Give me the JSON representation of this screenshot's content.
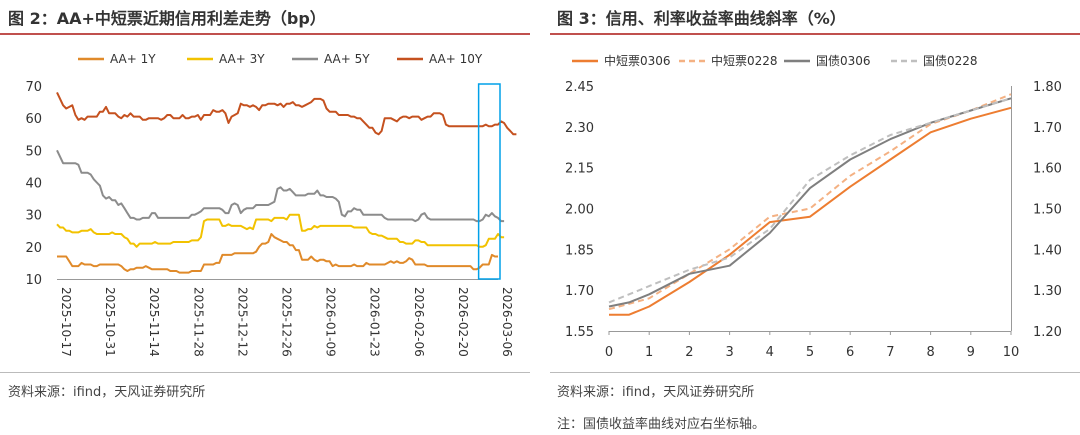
{
  "left_panel": {
    "title": "图 2：AA+中短票近期信用利差走势（bp）",
    "source": "资料来源：ifind，天风证券研究所"
  },
  "right_panel": {
    "title": "图 3：信用、利率收益率曲线斜率（%）",
    "source": "资料来源：ifind，天风证券研究所",
    "note": "注：国债收益率曲线对应右坐标轴。"
  },
  "chart_data": [
    {
      "type": "line",
      "title": "图 2：AA+中短票近期信用利差走势（bp）",
      "xlabel": "",
      "ylabel": "",
      "ylim": [
        10,
        70
      ],
      "y_ticks": [
        10,
        20,
        30,
        40,
        50,
        60,
        70
      ],
      "x_ticks": [
        "2025-10-17",
        "2025-10-31",
        "2025-11-14",
        "2025-11-28",
        "2025-12-12",
        "2025-12-26",
        "2026-01-09",
        "2026-01-23",
        "2026-02-06",
        "2026-02-20",
        "2026-03-06"
      ],
      "grid": false,
      "legend": "top",
      "highlight_box": {
        "from_index": 138,
        "to_index": 144,
        "color": "#00a0e9"
      },
      "n_points": 145,
      "series": [
        {
          "name": "AA+ 1Y",
          "color": "#e08a2a",
          "values": [
            17.0,
            17.0,
            17.0,
            17.0,
            15.5,
            14.0,
            14.0,
            14.0,
            15.0,
            14.5,
            14.5,
            14.5,
            14.0,
            14.0,
            14.5,
            14.5,
            14.5,
            14.5,
            14.5,
            14.5,
            14.5,
            14.0,
            13.0,
            12.5,
            13.0,
            13.0,
            13.5,
            13.5,
            13.5,
            14.0,
            13.5,
            13.0,
            13.0,
            13.0,
            13.0,
            13.0,
            13.0,
            12.5,
            12.5,
            12.5,
            12.0,
            12.0,
            12.0,
            12.0,
            12.5,
            12.5,
            12.5,
            12.5,
            14.5,
            14.5,
            14.5,
            14.5,
            15.0,
            15.0,
            17.5,
            17.5,
            17.5,
            17.5,
            18.0,
            18.0,
            18.0,
            18.0,
            18.0,
            18.0,
            18.0,
            18.5,
            20.0,
            21.0,
            21.0,
            21.5,
            24.0,
            23.0,
            22.5,
            22.0,
            21.5,
            21.5,
            20.5,
            20.5,
            19.0,
            19.0,
            16.0,
            16.0,
            16.0,
            17.0,
            16.0,
            15.5,
            16.0,
            16.0,
            15.5,
            15.5,
            14.0,
            14.5,
            14.0,
            14.0,
            14.0,
            14.0,
            14.0,
            14.5,
            14.0,
            14.0,
            14.0,
            15.0,
            14.5,
            14.5,
            14.5,
            14.5,
            14.5,
            14.5,
            15.0,
            15.5,
            15.0,
            15.5,
            15.0,
            15.0,
            15.5,
            16.5,
            16.0,
            14.5,
            14.5,
            14.5,
            14.5,
            14.0,
            14.0,
            14.0,
            14.0,
            14.0,
            14.0,
            14.0,
            14.0,
            14.0,
            14.0,
            14.0,
            14.0,
            14.0,
            14.0,
            14.0,
            13.0,
            13.0,
            13.5,
            14.5,
            14.5,
            14.5,
            17.5,
            17.0,
            17.0
          ]
        },
        {
          "name": "AA+ 3Y",
          "color": "#f2c200",
          "values": [
            27.0,
            26.0,
            26.0,
            25.0,
            25.0,
            24.5,
            24.5,
            24.5,
            25.0,
            25.0,
            25.0,
            25.5,
            24.5,
            24.0,
            24.0,
            24.0,
            24.0,
            24.0,
            24.5,
            24.0,
            24.0,
            24.0,
            23.0,
            22.5,
            21.0,
            21.0,
            20.0,
            21.0,
            21.0,
            21.0,
            21.0,
            21.0,
            21.5,
            21.0,
            21.0,
            21.0,
            21.0,
            21.0,
            21.5,
            21.5,
            21.5,
            21.5,
            21.5,
            21.5,
            22.0,
            22.0,
            22.0,
            23.0,
            28.0,
            28.5,
            28.5,
            28.5,
            28.5,
            28.5,
            26.5,
            26.5,
            27.0,
            26.5,
            26.5,
            26.5,
            26.5,
            26.0,
            25.5,
            26.0,
            25.5,
            28.5,
            28.5,
            28.5,
            28.5,
            28.5,
            28.0,
            29.0,
            29.0,
            29.0,
            29.0,
            28.5,
            30.0,
            30.0,
            30.0,
            30.0,
            25.0,
            25.0,
            25.5,
            25.5,
            26.5,
            26.0,
            26.5,
            26.5,
            26.5,
            26.5,
            26.5,
            26.5,
            26.5,
            26.5,
            26.5,
            26.5,
            26.5,
            26.0,
            26.0,
            26.0,
            26.0,
            26.0,
            24.5,
            24.0,
            24.0,
            23.5,
            23.5,
            23.0,
            22.5,
            22.5,
            22.5,
            22.5,
            21.5,
            21.5,
            21.0,
            21.0,
            21.0,
            22.0,
            22.0,
            21.5,
            21.5,
            20.5,
            20.5,
            20.5,
            20.5,
            20.5,
            20.5,
            20.5,
            20.5,
            20.5,
            20.5,
            20.5,
            20.5,
            20.5,
            20.5,
            20.5,
            20.5,
            20.5,
            20.0,
            20.0,
            20.5,
            22.5,
            22.5,
            22.5,
            24.0,
            23.0,
            23.0
          ]
        },
        {
          "name": "AA+ 5Y",
          "color": "#8c8c8c",
          "values": [
            50.0,
            48.0,
            46.0,
            46.0,
            46.0,
            46.0,
            46.0,
            45.5,
            43.0,
            43.0,
            43.0,
            42.5,
            41.0,
            40.0,
            39.0,
            36.0,
            35.0,
            35.5,
            34.5,
            34.5,
            33.0,
            33.5,
            32.0,
            30.5,
            29.0,
            29.0,
            28.5,
            28.5,
            29.0,
            29.0,
            29.0,
            30.5,
            30.5,
            29.0,
            29.0,
            29.0,
            29.0,
            29.0,
            29.0,
            29.0,
            29.0,
            29.0,
            29.0,
            29.0,
            30.0,
            30.0,
            30.5,
            31.0,
            32.0,
            32.0,
            32.0,
            32.0,
            32.0,
            32.0,
            31.5,
            30.5,
            30.5,
            33.0,
            33.5,
            33.0,
            30.5,
            31.5,
            32.0,
            32.0,
            32.0,
            33.0,
            33.0,
            33.0,
            33.0,
            33.0,
            33.5,
            34.0,
            38.0,
            38.5,
            37.5,
            37.5,
            38.0,
            37.0,
            36.0,
            36.0,
            36.0,
            36.0,
            36.5,
            36.5,
            36.5,
            37.5,
            36.0,
            36.0,
            35.5,
            35.5,
            35.5,
            35.0,
            34.0,
            30.0,
            29.5,
            31.0,
            31.0,
            32.0,
            31.5,
            31.5,
            30.0,
            30.0,
            30.0,
            30.0,
            30.0,
            30.0,
            30.0,
            29.0,
            28.5,
            28.5,
            28.5,
            28.5,
            28.5,
            28.5,
            28.5,
            28.5,
            28.5,
            28.0,
            28.5,
            30.0,
            30.5,
            29.0,
            28.5,
            28.5,
            28.5,
            28.5,
            28.5,
            28.5,
            28.5,
            28.5,
            28.5,
            28.5,
            28.5,
            28.5,
            28.5,
            28.5,
            28.5,
            28.0,
            28.0,
            28.5,
            30.0,
            29.5,
            30.5,
            29.5,
            29.0,
            28.0,
            28.0
          ]
        },
        {
          "name": "AA+ 10Y",
          "color": "#c5511f",
          "values": [
            68.0,
            66.0,
            64.0,
            63.0,
            63.5,
            64.0,
            61.0,
            59.5,
            60.0,
            59.5,
            60.5,
            60.5,
            60.5,
            60.5,
            62.0,
            62.0,
            63.5,
            61.5,
            61.5,
            61.5,
            60.5,
            60.0,
            61.0,
            60.5,
            61.5,
            60.5,
            60.5,
            60.5,
            59.5,
            59.5,
            60.0,
            60.0,
            60.0,
            60.0,
            59.5,
            60.0,
            61.0,
            61.0,
            60.0,
            60.0,
            60.0,
            61.0,
            60.0,
            60.0,
            60.5,
            60.5,
            61.0,
            59.5,
            61.0,
            61.0,
            61.0,
            62.5,
            62.0,
            62.0,
            62.5,
            61.5,
            58.5,
            60.5,
            61.0,
            61.5,
            64.5,
            64.0,
            64.0,
            63.5,
            64.0,
            63.5,
            62.5,
            64.0,
            64.0,
            64.5,
            64.5,
            64.5,
            64.0,
            64.5,
            63.5,
            64.5,
            64.5,
            65.0,
            64.0,
            64.0,
            63.5,
            64.0,
            64.5,
            65.0,
            66.0,
            66.0,
            66.0,
            65.5,
            63.0,
            62.0,
            62.0,
            62.0,
            61.0,
            61.0,
            61.0,
            61.0,
            60.5,
            60.5,
            60.0,
            60.0,
            59.0,
            58.0,
            57.0,
            57.0,
            55.5,
            55.0,
            56.0,
            60.0,
            60.0,
            60.0,
            59.5,
            59.0,
            60.0,
            60.5,
            60.5,
            60.0,
            60.5,
            60.5,
            60.5,
            59.5,
            60.0,
            60.5,
            60.5,
            61.5,
            61.5,
            61.5,
            61.0,
            58.0,
            57.5,
            57.5,
            57.5,
            57.5,
            57.5,
            57.5,
            57.5,
            57.5,
            57.5,
            57.5,
            57.5,
            57.5,
            58.0,
            57.5,
            57.5,
            58.0,
            58.0,
            59.0,
            58.5,
            57.0,
            56.0,
            55.0,
            55.0
          ]
        }
      ]
    },
    {
      "type": "line",
      "title": "图 3：信用、利率收益率曲线斜率（%）",
      "xlabel": "",
      "ylabel": "",
      "x": [
        0,
        0.5,
        1,
        2,
        3,
        4,
        5,
        6,
        7,
        8,
        9,
        10
      ],
      "x_ticks": [
        0,
        1,
        2,
        3,
        4,
        5,
        6,
        7,
        8,
        9,
        10
      ],
      "xlim": [
        0,
        10
      ],
      "ylim_left": [
        1.55,
        2.45
      ],
      "y_ticks_left": [
        1.55,
        1.7,
        1.85,
        2.0,
        2.15,
        2.3,
        2.45
      ],
      "ylim_right": [
        1.2,
        1.8
      ],
      "y_ticks_right": [
        1.2,
        1.3,
        1.4,
        1.5,
        1.6,
        1.7,
        1.8
      ],
      "grid": false,
      "legend": "top",
      "series": [
        {
          "name": "中短票0306",
          "axis": "left",
          "color": "#ed7d31",
          "dash": false,
          "values": [
            1.61,
            1.61,
            1.64,
            1.73,
            1.83,
            1.95,
            1.97,
            2.08,
            2.18,
            2.28,
            2.33,
            2.37
          ]
        },
        {
          "name": "中短票0228",
          "axis": "left",
          "color": "#f4b183",
          "dash": true,
          "values": [
            1.63,
            1.65,
            1.67,
            1.76,
            1.85,
            1.97,
            2.0,
            2.12,
            2.21,
            2.31,
            2.36,
            2.42
          ]
        },
        {
          "name": "国债0306",
          "axis": "right",
          "color": "#7f7f7f",
          "dash": false,
          "values": [
            1.26,
            1.27,
            1.29,
            1.34,
            1.36,
            1.44,
            1.55,
            1.62,
            1.67,
            1.71,
            1.74,
            1.77
          ]
        },
        {
          "name": "国债0228",
          "axis": "right",
          "color": "#bfbfbf",
          "dash": true,
          "values": [
            1.27,
            1.29,
            1.31,
            1.35,
            1.38,
            1.45,
            1.57,
            1.63,
            1.68,
            1.71,
            1.74,
            1.77
          ]
        }
      ]
    }
  ]
}
